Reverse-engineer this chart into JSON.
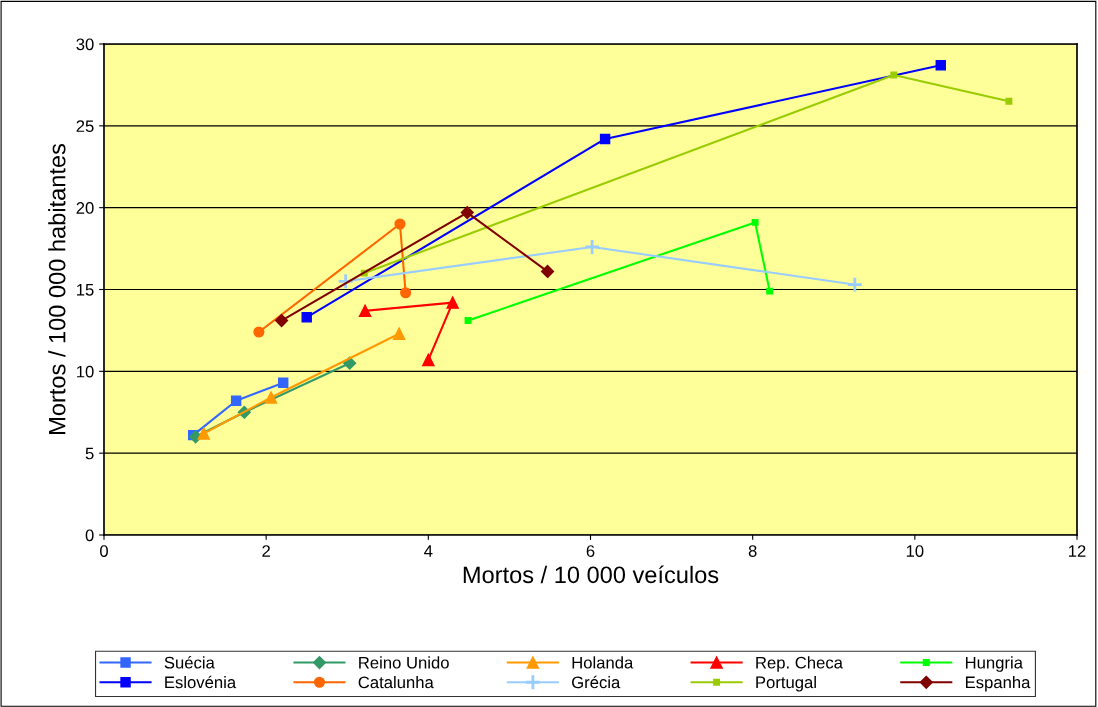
{
  "chart_data": {
    "type": "line",
    "xlabel": "Mortos / 10 000 veículos",
    "ylabel": "Mortos / 100 000 habitantes",
    "xlim": [
      0,
      12
    ],
    "xticks": [
      0,
      2,
      4,
      6,
      8,
      10,
      12
    ],
    "ylim": [
      0,
      30
    ],
    "yticks": [
      0,
      5,
      10,
      15,
      20,
      25,
      30
    ],
    "grid": "y",
    "legend": "bottom",
    "line_style": "solid",
    "series": [
      {
        "name": "Suécia",
        "color": "#3366ff",
        "marker": "square",
        "x": [
          1.1,
          1.63,
          2.21
        ],
        "values": [
          6.1,
          8.2,
          9.3
        ]
      },
      {
        "name": "Reino Unido",
        "color": "#339966",
        "marker": "diamond",
        "x": [
          1.13,
          1.73,
          3.03
        ],
        "values": [
          6.0,
          7.5,
          10.5
        ]
      },
      {
        "name": "Holanda",
        "color": "#ff9900",
        "marker": "triangle",
        "x": [
          1.23,
          2.06,
          3.64
        ],
        "values": [
          6.2,
          8.4,
          12.3
        ]
      },
      {
        "name": "Rep. Checa",
        "color": "#ff0000",
        "marker": "triangle",
        "x": [
          3.22,
          4.3,
          4.0
        ],
        "values": [
          13.7,
          14.2,
          10.7
        ]
      },
      {
        "name": "Hungria",
        "color": "#00ff00",
        "marker": "square",
        "x": [
          4.49,
          8.03,
          8.21
        ],
        "values": [
          13.1,
          19.1,
          14.9
        ]
      },
      {
        "name": "Eslovénia",
        "color": "#0000ff",
        "marker": "square",
        "x": [
          2.5,
          6.18,
          10.32
        ],
        "values": [
          13.3,
          24.2,
          28.7
        ]
      },
      {
        "name": "Catalunha",
        "color": "#ff6600",
        "marker": "circle",
        "x": [
          1.91,
          3.65,
          3.72
        ],
        "values": [
          12.4,
          19.0,
          14.8
        ]
      },
      {
        "name": "Grécia",
        "color": "#99ccff",
        "marker": "cross",
        "x": [
          2.98,
          6.02,
          9.26
        ],
        "values": [
          15.5,
          17.6,
          15.3
        ]
      },
      {
        "name": "Portugal",
        "color": "#99cc00",
        "marker": "square",
        "x": [
          3.21,
          9.74,
          11.16
        ],
        "values": [
          16.0,
          28.1,
          26.5
        ]
      },
      {
        "name": "Espanha",
        "color": "#800000",
        "marker": "diamond",
        "x": [
          2.19,
          4.48,
          5.47
        ],
        "values": [
          13.1,
          19.7,
          16.1
        ]
      }
    ]
  }
}
